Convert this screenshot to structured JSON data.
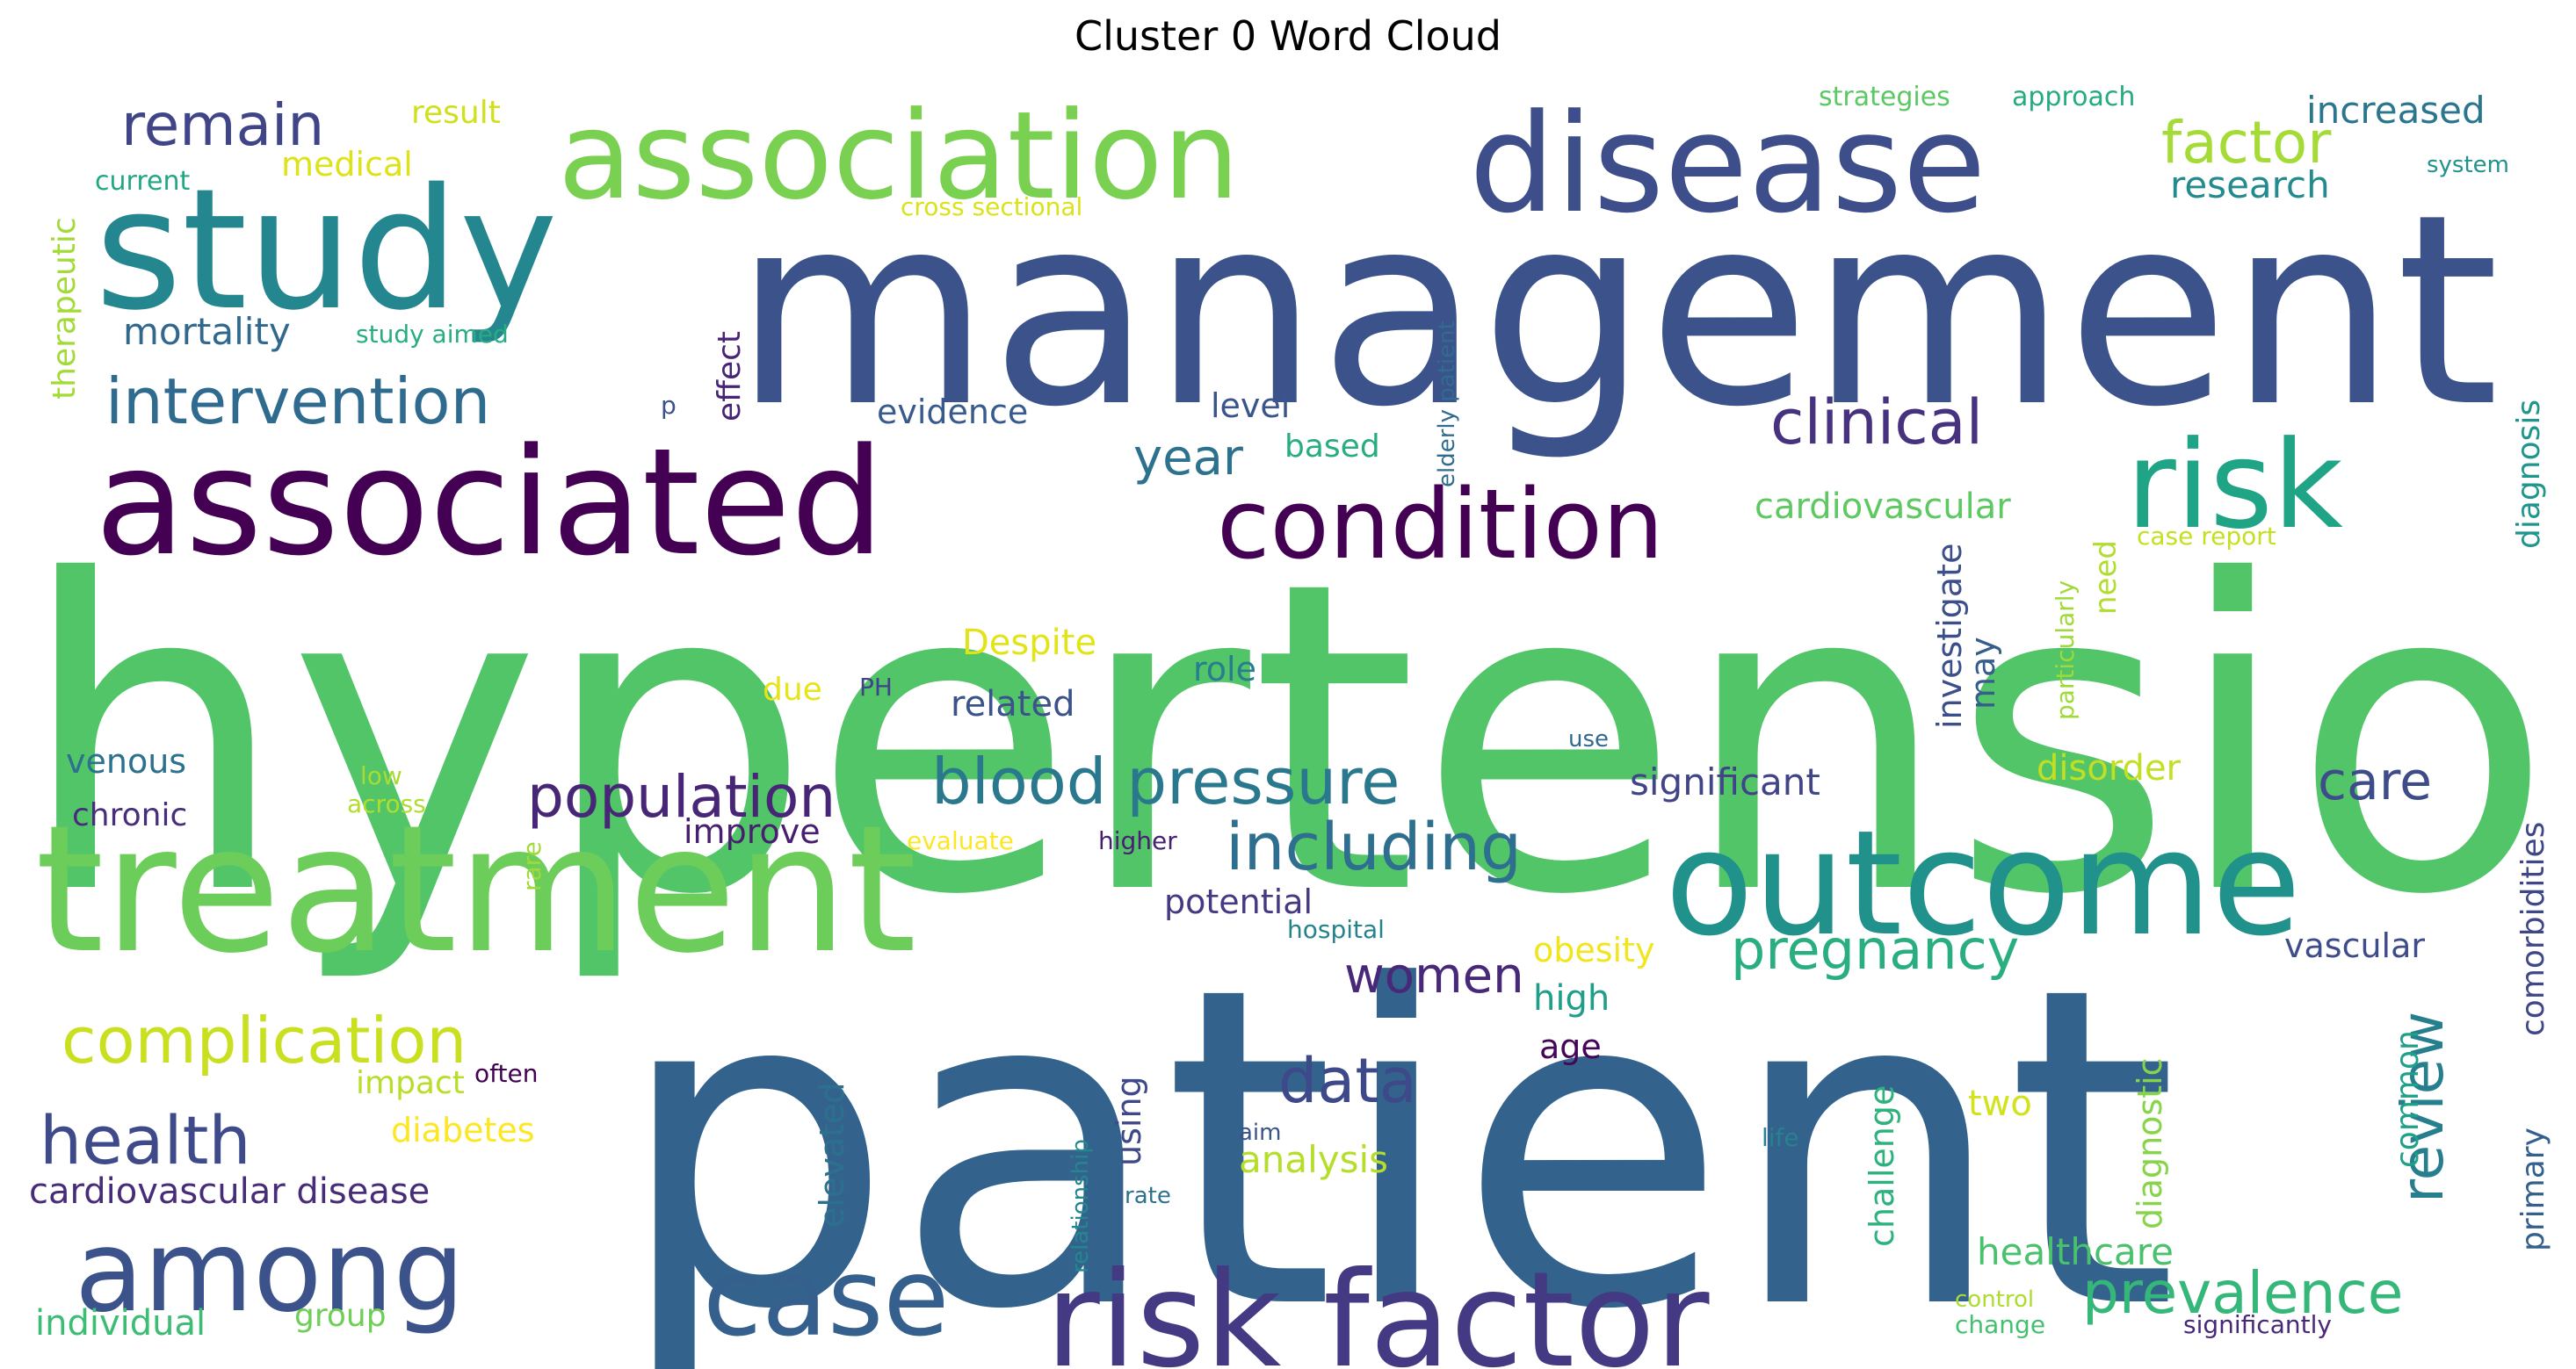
{
  "title": "Cluster 0 Word Cloud",
  "words": [
    {
      "text": "hypertension",
      "color": "#52c569"
    },
    {
      "text": "patient",
      "color": "#33638d"
    },
    {
      "text": "management",
      "color": "#3b528b"
    },
    {
      "text": "treatment",
      "color": "#6ccd5a"
    },
    {
      "text": "study",
      "color": "#24868e"
    },
    {
      "text": "associated",
      "color": "#440154"
    },
    {
      "text": "disease",
      "color": "#3d4e8a"
    },
    {
      "text": "association",
      "color": "#7ad151"
    },
    {
      "text": "outcome",
      "color": "#21918c"
    },
    {
      "text": "risk factor",
      "color": "#443983"
    },
    {
      "text": "among",
      "color": "#3b528b"
    },
    {
      "text": "case",
      "color": "#355f8d"
    },
    {
      "text": "risk",
      "color": "#20a486"
    },
    {
      "text": "condition",
      "color": "#440154"
    },
    {
      "text": "blood pressure",
      "color": "#2a788e"
    },
    {
      "text": "including",
      "color": "#2e6e8e"
    },
    {
      "text": "intervention",
      "color": "#2f6b8e"
    },
    {
      "text": "clinical",
      "color": "#46327e"
    },
    {
      "text": "complication",
      "color": "#c8e020"
    },
    {
      "text": "health",
      "color": "#3e4a89"
    },
    {
      "text": "population",
      "color": "#482677"
    },
    {
      "text": "factor",
      "color": "#a5db36"
    },
    {
      "text": "remain",
      "color": "#404588"
    },
    {
      "text": "prevalence",
      "color": "#35b779"
    },
    {
      "text": "pregnancy",
      "color": "#29af7f"
    },
    {
      "text": "review",
      "color": "#277f8e"
    },
    {
      "text": "data",
      "color": "#3e4989"
    },
    {
      "text": "women",
      "color": "#482878"
    },
    {
      "text": "care",
      "color": "#3e4c8a"
    },
    {
      "text": "year",
      "color": "#2c728e"
    },
    {
      "text": "cardiovascular disease",
      "color": "#472c7a"
    },
    {
      "text": "increased",
      "color": "#2a768e"
    },
    {
      "text": "mortality",
      "color": "#31688e"
    },
    {
      "text": "research",
      "color": "#238a8d"
    },
    {
      "text": "significant",
      "color": "#414487"
    },
    {
      "text": "diabetes",
      "color": "#fde725"
    },
    {
      "text": "healthcare",
      "color": "#4ac16d"
    },
    {
      "text": "analysis",
      "color": "#b5de2b"
    },
    {
      "text": "individual",
      "color": "#3dbc74"
    },
    {
      "text": "medical",
      "color": "#dde318"
    },
    {
      "text": "evidence",
      "color": "#375b8d"
    },
    {
      "text": "obesity",
      "color": "#f1e51d"
    },
    {
      "text": "high",
      "color": "#1f9e89"
    },
    {
      "text": "related",
      "color": "#3b528b"
    },
    {
      "text": "potential",
      "color": "#443a83"
    },
    {
      "text": "disorder",
      "color": "#c2df23"
    },
    {
      "text": "cardiovascular",
      "color": "#5ec962"
    },
    {
      "text": "improve",
      "color": "#481f70"
    },
    {
      "text": "venous",
      "color": "#2c718e"
    },
    {
      "text": "chronic",
      "color": "#472d7b"
    },
    {
      "text": "vascular",
      "color": "#3e4c8a"
    },
    {
      "text": "Despite",
      "color": "#e2e418"
    },
    {
      "text": "result",
      "color": "#d0e11c"
    },
    {
      "text": "role",
      "color": "#287d8e"
    },
    {
      "text": "level",
      "color": "#3a548c"
    },
    {
      "text": "based",
      "color": "#27ad81"
    },
    {
      "text": "impact",
      "color": "#b8de29"
    },
    {
      "text": "group",
      "color": "#6ece58"
    },
    {
      "text": "due",
      "color": "#e7e419"
    },
    {
      "text": "two",
      "color": "#d2e21b"
    },
    {
      "text": "age",
      "color": "#450559"
    },
    {
      "text": "investigate",
      "color": "#3c4f8a"
    },
    {
      "text": "may",
      "color": "#355e8d"
    },
    {
      "text": "need",
      "color": "#b0dd2f"
    },
    {
      "text": "effect",
      "color": "#482475"
    },
    {
      "text": "elevated",
      "color": "#2d708e"
    },
    {
      "text": "using",
      "color": "#3f4889"
    },
    {
      "text": "challenge",
      "color": "#2db27d"
    },
    {
      "text": "diagnostic",
      "color": "#86d549"
    },
    {
      "text": "common",
      "color": "#1fa088"
    },
    {
      "text": "primary",
      "color": "#34608d"
    },
    {
      "text": "comorbidities",
      "color": "#3f4788"
    },
    {
      "text": "diagnosis",
      "color": "#1f968b"
    },
    {
      "text": "therapeutic",
      "color": "#a2da37"
    },
    {
      "text": "strategies",
      "color": "#5cc863"
    },
    {
      "text": "approach",
      "color": "#25ab82"
    },
    {
      "text": "current",
      "color": "#22a785"
    },
    {
      "text": "cross sectional",
      "color": "#dae319"
    },
    {
      "text": "system",
      "color": "#20928c"
    },
    {
      "text": "study aimed",
      "color": "#27ad81"
    },
    {
      "text": "p",
      "color": "#3b528b"
    },
    {
      "text": "elderly patient",
      "color": "#2f6c8e"
    },
    {
      "text": "particularly",
      "color": "#a0da39"
    },
    {
      "text": "case report",
      "color": "#c5e021"
    },
    {
      "text": "PH",
      "color": "#414287"
    },
    {
      "text": "use",
      "color": "#31688e"
    },
    {
      "text": "low",
      "color": "#a8db34"
    },
    {
      "text": "across",
      "color": "#b2dd2d"
    },
    {
      "text": "evaluate",
      "color": "#fde725"
    },
    {
      "text": "higher",
      "color": "#482071"
    },
    {
      "text": "rare",
      "color": "#9fda3a"
    },
    {
      "text": "hospital",
      "color": "#25838e"
    },
    {
      "text": "often",
      "color": "#440154"
    },
    {
      "text": "relationship",
      "color": "#23888e"
    },
    {
      "text": "aim",
      "color": "#3b528b"
    },
    {
      "text": "rate",
      "color": "#2d718e"
    },
    {
      "text": "life",
      "color": "#26828e"
    },
    {
      "text": "control",
      "color": "#addc30"
    },
    {
      "text": "change",
      "color": "#45bf70"
    },
    {
      "text": "significantly",
      "color": "#482878"
    }
  ]
}
